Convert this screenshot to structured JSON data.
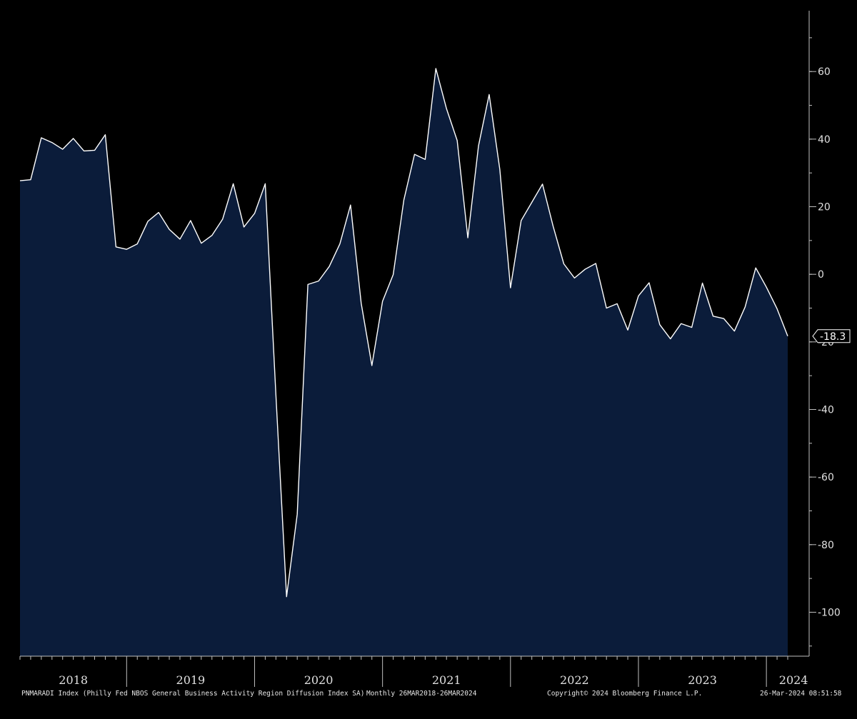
{
  "colors": {
    "background": "#000000",
    "plot_background": "#000000",
    "area_fill": "#0b1c3a",
    "line": "#ffffff",
    "axis": "#bfbfbf",
    "text": "#e0e0e0"
  },
  "footer": {
    "series_description": "PNMARADI Index (Philly Fed NBOS General Business Activity Region Diffusion Index SA)",
    "frequency_range": "Monthly 26MAR2018-26MAR2024",
    "copyright": "Copyright© 2024 Bloomberg Finance L.P.",
    "timestamp": "26-Mar-2024 08:51:58"
  },
  "last_value_label": "-18.3",
  "chart_data": {
    "type": "area",
    "title": "",
    "xlabel": "",
    "ylabel": "",
    "y_axis_side": "right",
    "ylim": [
      -113,
      78
    ],
    "y_ticks": [
      60,
      40,
      20,
      0,
      -20,
      -40,
      -60,
      -80,
      -100
    ],
    "year_labels": [
      "2018",
      "2019",
      "2020",
      "2021",
      "2022",
      "2023",
      "2024"
    ],
    "grid": false,
    "legend": "none",
    "series": [
      {
        "values": [
          27.7,
          28,
          40.4,
          39,
          37,
          40.2,
          36.5,
          36.7,
          41.3,
          8.1,
          7.4,
          9,
          15.7,
          18.3,
          13.3,
          10.4,
          15.9,
          9.2,
          11.5,
          16.3,
          26.8,
          14,
          18,
          26.8,
          -35.7,
          -95.4,
          -71,
          -3,
          -2,
          2.3,
          9,
          20.5,
          -8.6,
          -27,
          -8,
          -0.1,
          22,
          35.5,
          34,
          60.9,
          49,
          39.6,
          10.8,
          38,
          53.2,
          31,
          -4,
          15.9,
          21.3,
          26.7,
          14.2,
          3.1,
          -1.1,
          1.5,
          3.2,
          -10,
          -8.7,
          -16.5,
          -6.4,
          -2.5,
          -14.9,
          -19.1,
          -14.6,
          -15.7,
          -2.6,
          -12.4,
          -13.1,
          -16.8,
          -9.7,
          1.9,
          -3.8,
          -10.2,
          -18.3
        ]
      }
    ]
  }
}
